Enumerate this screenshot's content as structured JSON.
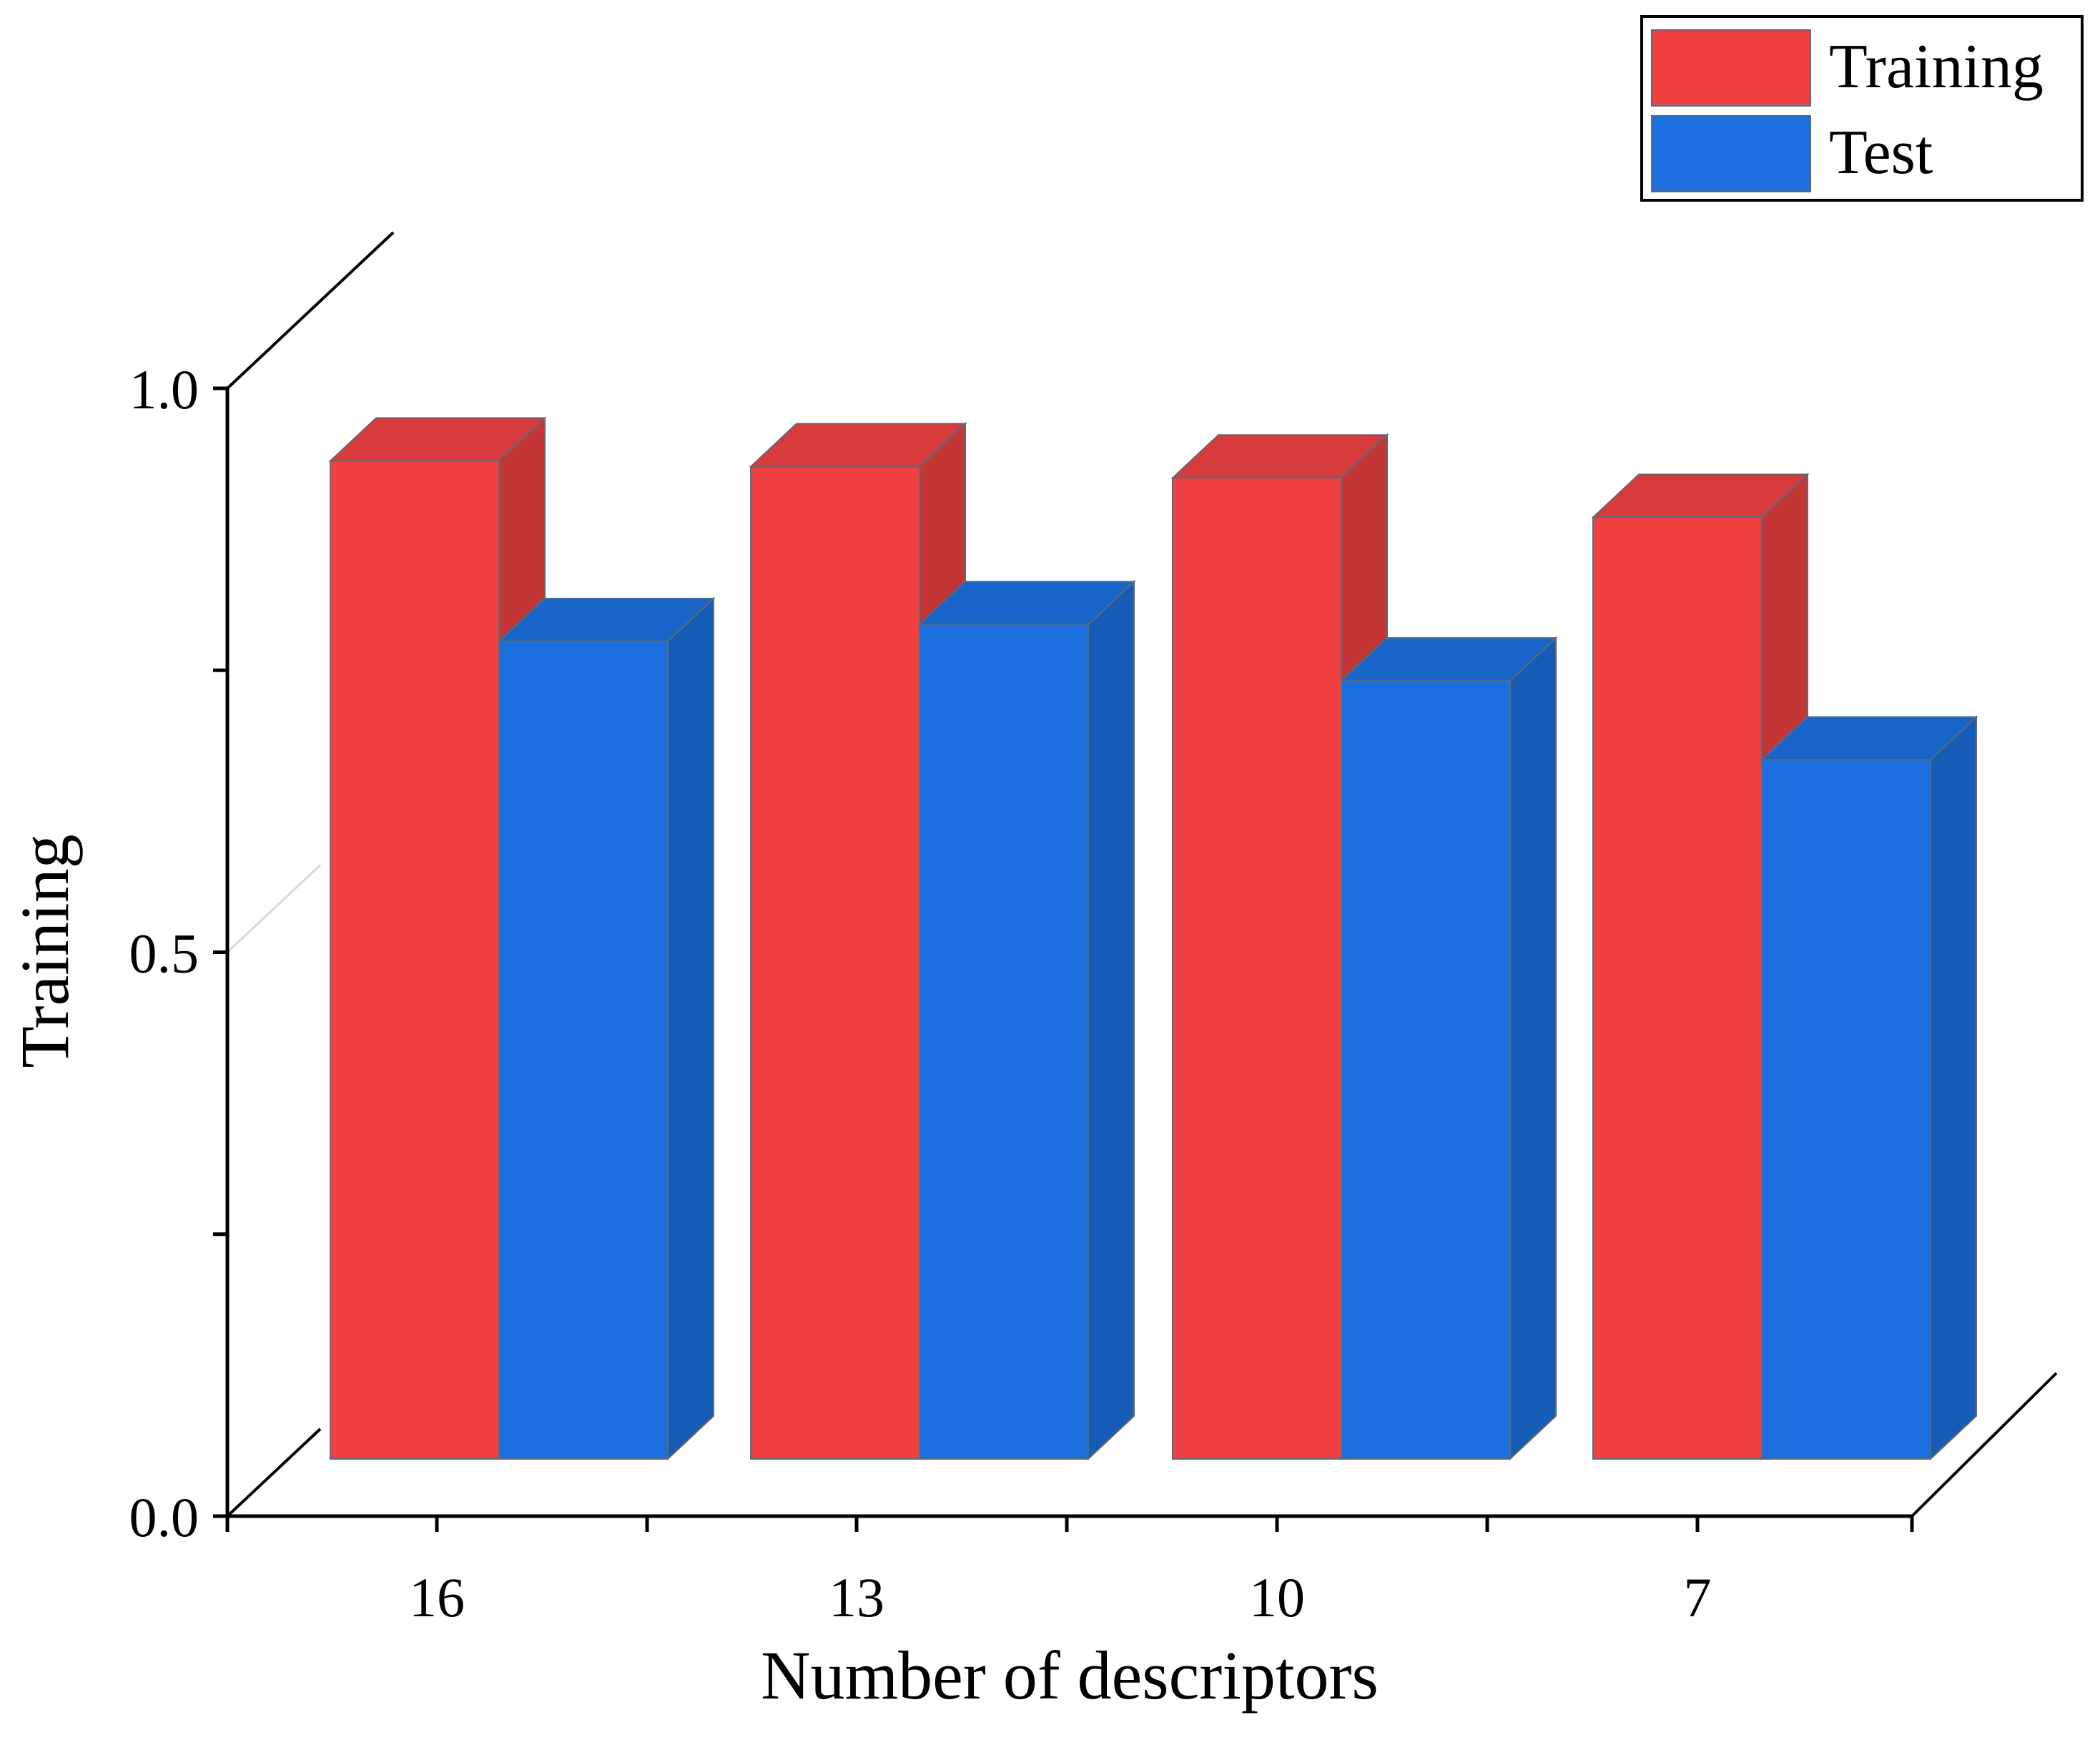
{
  "chart_data": {
    "type": "bar",
    "categories": [
      "16",
      "13",
      "10",
      "7"
    ],
    "series": [
      {
        "name": "Training",
        "values": [
          0.98,
          0.975,
          0.965,
          0.93
        ]
      },
      {
        "name": "Test",
        "values": [
          0.82,
          0.835,
          0.785,
          0.715
        ]
      }
    ],
    "ylabel": "Training",
    "xlabel": "Number of descriptors",
    "ylim": [
      0,
      1
    ],
    "yticks": [
      "0.0",
      "0.5",
      "1.0"
    ],
    "grid": false,
    "legend_position": "top-right",
    "colors": {
      "Training": "#ef4142",
      "Test": "#1b6fde"
    },
    "style": "3d-bar"
  }
}
